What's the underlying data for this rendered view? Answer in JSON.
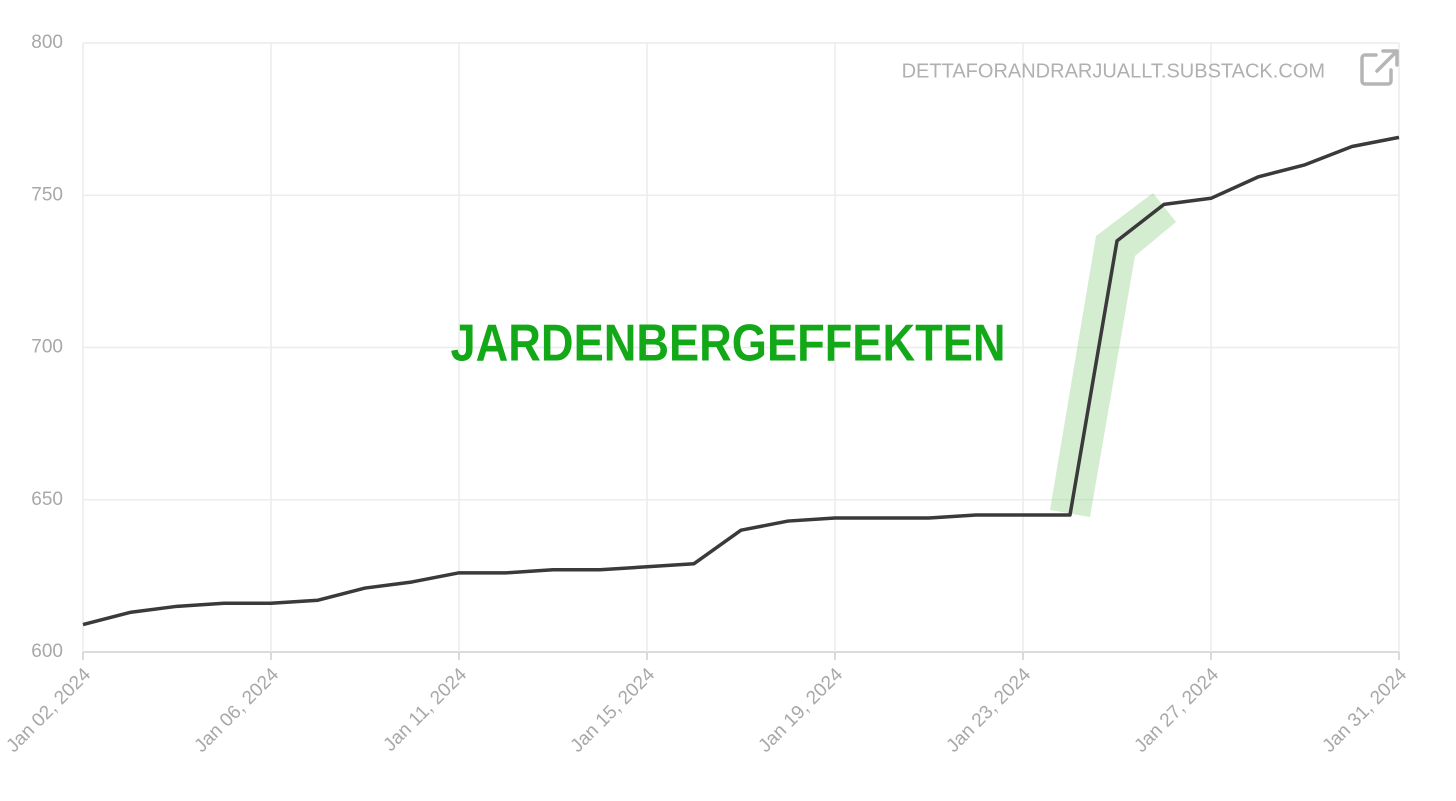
{
  "chart_data": {
    "type": "line",
    "annotation": "JARDENBERGEFFEKTEN",
    "watermark": "DETTAFORANDRARJUALLT.SUBSTACK.COM",
    "categories": [
      "Jan 02, 2024",
      null,
      null,
      null,
      "Jan 06, 2024",
      null,
      null,
      null,
      "Jan 11, 2024",
      null,
      null,
      null,
      "Jan 15, 2024",
      null,
      null,
      null,
      "Jan 19, 2024",
      null,
      null,
      null,
      "Jan 23, 2024",
      null,
      null,
      null,
      "Jan 27, 2024",
      null,
      null,
      null,
      "Jan 31, 2024"
    ],
    "series": [
      {
        "color": "#3a3a3a",
        "values": [
          609,
          613,
          615,
          616,
          616,
          617,
          621,
          623,
          626,
          626,
          627,
          627,
          628,
          629,
          640,
          643,
          644,
          644,
          644,
          645,
          645,
          645,
          735,
          747,
          749,
          756,
          760,
          766,
          769
        ]
      }
    ],
    "ylim": [
      600,
      800
    ],
    "yticks": [
      600,
      650,
      700,
      750,
      800
    ],
    "grid": true
  }
}
